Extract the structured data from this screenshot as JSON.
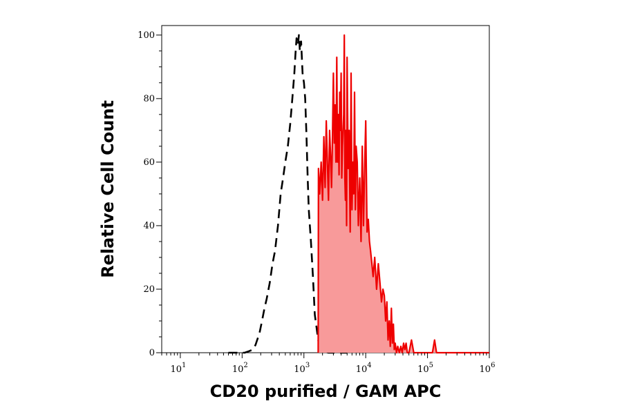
{
  "chart_data": {
    "type": "area",
    "title": "",
    "xlabel": "CD20 purified / GAM APC",
    "ylabel": "Relative Cell Count",
    "x_scale": "log",
    "xlim": [
      5,
      1000000
    ],
    "ylim": [
      0,
      103
    ],
    "grid": false,
    "x_ticks": [
      {
        "base": "10",
        "exp": "1",
        "value": 10
      },
      {
        "base": "10",
        "exp": "2",
        "value": 100
      },
      {
        "base": "10",
        "exp": "3",
        "value": 1000
      },
      {
        "base": "10",
        "exp": "4",
        "value": 10000
      },
      {
        "base": "10",
        "exp": "5",
        "value": 100000
      },
      {
        "base": "10",
        "exp": "6",
        "value": 1000000
      }
    ],
    "y_ticks": [
      {
        "label": "0",
        "value": 0
      },
      {
        "label": "20",
        "value": 20
      },
      {
        "label": "40",
        "value": 40
      },
      {
        "label": "60",
        "value": 60
      },
      {
        "label": "80",
        "value": 80
      },
      {
        "label": "100",
        "value": 100
      }
    ],
    "series": [
      {
        "style": "dashed",
        "color": "#000000",
        "x": [
          60,
          90,
          110,
          130,
          150,
          165,
          175,
          190,
          210,
          230,
          250,
          280,
          310,
          340,
          380,
          420,
          460,
          500,
          550,
          600,
          650,
          700,
          730,
          760,
          800,
          830,
          860,
          900,
          950,
          1000,
          1050,
          1100,
          1150,
          1200,
          1300,
          1400,
          1500,
          1600,
          1700,
          1800,
          1900,
          2000,
          2200,
          2500,
          2900,
          3500,
          5000
        ],
        "y": [
          0,
          0,
          0,
          0.5,
          1,
          2.5,
          4,
          6,
          10,
          14,
          17,
          22,
          28,
          32,
          40,
          50,
          55,
          60,
          65,
          72,
          80,
          88,
          94,
          99,
          97,
          100,
          95,
          98,
          88,
          85,
          80,
          68,
          55,
          45,
          35,
          24,
          12,
          8,
          4,
          2.5,
          1.5,
          1,
          0.3,
          0,
          0,
          0,
          0
        ]
      },
      {
        "style": "filled",
        "color": "#ee0000",
        "fill": "#f89a9a",
        "x": [
          1700,
          1720,
          1800,
          1900,
          2000,
          2100,
          2200,
          2300,
          2400,
          2500,
          2600,
          2700,
          2800,
          2900,
          3000,
          3100,
          3200,
          3300,
          3400,
          3500,
          3600,
          3700,
          3800,
          3900,
          4000,
          4100,
          4200,
          4300,
          4400,
          4500,
          4600,
          4700,
          4800,
          4900,
          5000,
          5200,
          5400,
          5600,
          5800,
          6000,
          6200,
          6400,
          6600,
          6800,
          7000,
          7300,
          7600,
          8000,
          8400,
          8800,
          9200,
          9600,
          10000,
          10500,
          11000,
          11500,
          12000,
          12600,
          13200,
          14000,
          15000,
          16000,
          17000,
          18000,
          19000,
          20000,
          21000,
          22000,
          23000,
          24000,
          25000,
          26000,
          27000,
          28000,
          29000,
          30000,
          31500,
          33000,
          35000,
          37000,
          39000,
          41000,
          43000,
          45000,
          47000,
          50000,
          55000,
          60000,
          100000,
          110000,
          120000,
          130000,
          140000,
          200000,
          1000000
        ],
        "y": [
          0,
          58,
          50,
          60,
          48,
          68,
          52,
          73,
          60,
          48,
          70,
          62,
          52,
          68,
          88,
          66,
          78,
          60,
          93,
          60,
          75,
          56,
          82,
          70,
          88,
          55,
          65,
          70,
          75,
          100,
          55,
          48,
          70,
          40,
          93,
          58,
          70,
          38,
          88,
          45,
          60,
          50,
          82,
          45,
          65,
          60,
          40,
          55,
          35,
          65,
          40,
          58,
          73,
          38,
          42,
          35,
          32,
          28,
          24,
          30,
          20,
          28,
          22,
          16,
          20,
          18,
          10,
          16,
          4,
          10,
          2,
          14,
          3,
          9,
          1,
          3,
          0,
          2,
          0,
          2,
          0,
          3,
          1,
          3,
          0,
          0,
          4,
          0,
          0,
          0,
          0,
          4,
          0,
          0,
          0
        ]
      }
    ]
  }
}
